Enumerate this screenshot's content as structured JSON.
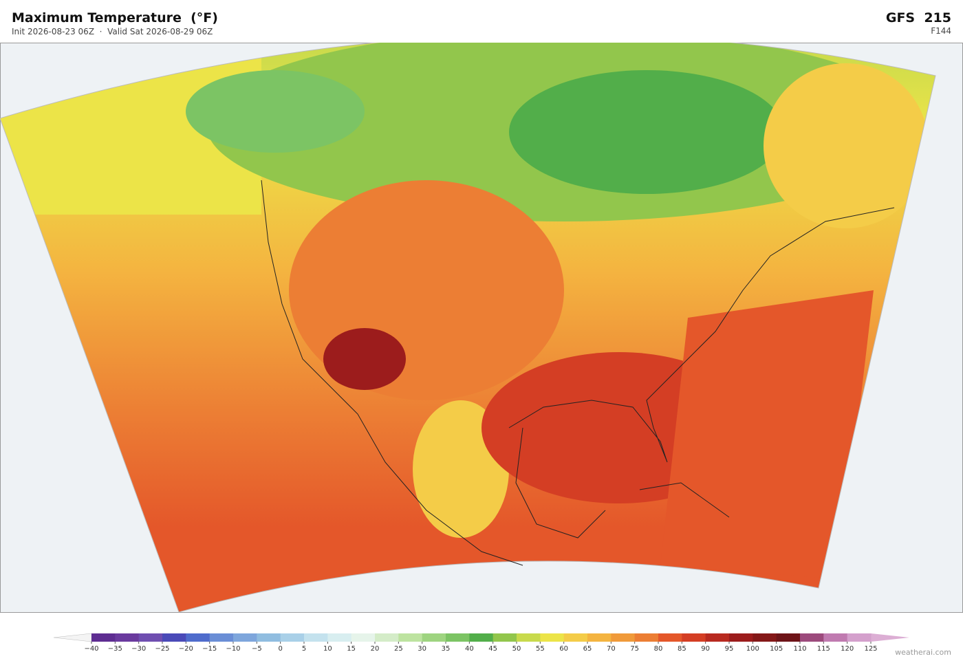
{
  "header": {
    "title": "Maximum Temperature  (°F)",
    "subtitle": "Init 2026-08-23 06Z  ·  Valid Sat 2026-08-29 06Z",
    "model": "GFS  215",
    "forecast_hour": "F144"
  },
  "colorbar": {
    "ticks": [
      {
        "value": -40,
        "label": "−40"
      },
      {
        "value": -35,
        "label": "−35"
      },
      {
        "value": -30,
        "label": "−30"
      },
      {
        "value": -25,
        "label": "−25"
      },
      {
        "value": -20,
        "label": "−20"
      },
      {
        "value": -15,
        "label": "−15"
      },
      {
        "value": -10,
        "label": "−10"
      },
      {
        "value": -5,
        "label": "−5"
      },
      0,
      5,
      10,
      15,
      20,
      25,
      30,
      35,
      40,
      45,
      50,
      55,
      60,
      65,
      70,
      75,
      80,
      85,
      90,
      95,
      100,
      105,
      110,
      115,
      120,
      125
    ],
    "colors": [
      "#5e2d91",
      "#6a3a9e",
      "#6f4eb0",
      "#4a4ab8",
      "#4f6ccc",
      "#6a8ed6",
      "#7ea6dc",
      "#90bde0",
      "#a9d0e8",
      "#c4e2ee",
      "#d8eef0",
      "#e6f4ea",
      "#d4ecc8",
      "#bde3a0",
      "#9ed480",
      "#7cc464",
      "#52ae4a",
      "#92c64c",
      "#c8da4c",
      "#ece448",
      "#f4cc48",
      "#f4b440",
      "#f09a3a",
      "#ec7e34",
      "#e4572a",
      "#d43e24",
      "#b82a20",
      "#9c1c1c",
      "#841818",
      "#6e1418",
      "#9c4a7c",
      "#c07ab0",
      "#d4a0cc"
    ],
    "under_color": "#f4f4f4",
    "over_color": "#dcaed4"
  },
  "footer": {
    "source": "weatherai.com"
  }
}
